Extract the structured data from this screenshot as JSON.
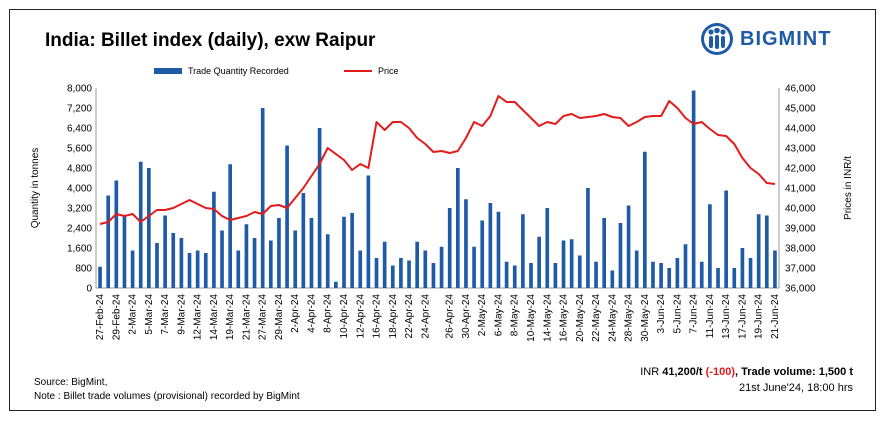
{
  "title": "India: Billet index (daily), exw Raipur",
  "brand": {
    "name": "BIGMINT",
    "color": "#1f5aa6",
    "icon": "people-group-icon"
  },
  "legend": {
    "bar_label": "Trade Quantity Recorded",
    "line_label": "Price"
  },
  "colors": {
    "bar": "#1f5aa6",
    "line": "#e31b1b"
  },
  "footer": {
    "source": "Source: BigMint,",
    "note": "Note : Billet trade volumes (provisional) recorded by BigMint",
    "price_prefix": "INR ",
    "price_value": "41,200/t",
    "change": "(-100)",
    "trade_volume": ", Trade volume: 1,500 t",
    "timestamp": "21st June'24, 18:00 hrs"
  },
  "chart_data": {
    "type": "bar",
    "title": "India: Billet index (daily), exw Raipur",
    "ylabel": "Quantity in tonnes",
    "y2label": "Prices in INR/t",
    "ylim": [
      0,
      8000
    ],
    "y2lim": [
      36000,
      46000
    ],
    "yticks": [
      "0",
      "800",
      "1,600",
      "2,400",
      "3,200",
      "4,000",
      "4,800",
      "5,600",
      "6,400",
      "7,200",
      "8,000"
    ],
    "y2ticks": [
      "36,000",
      "37,000",
      "38,000",
      "39,000",
      "40,000",
      "41,000",
      "42,000",
      "43,000",
      "44,000",
      "45,000",
      "46,000"
    ],
    "xtick_labels": [
      "27-Feb-24",
      "29-Feb-24",
      "2-Mar-24",
      "5-Mar-24",
      "7-Mar-24",
      "9-Mar-24",
      "12-Mar-24",
      "14-Mar-24",
      "19-Mar-24",
      "21-Mar-24",
      "27-Mar-24",
      "29-Mar-24",
      "2-Apr-24",
      "4-Apr-24",
      "8-Apr-24",
      "10-Apr-24",
      "12-Apr-24",
      "16-Apr-24",
      "18-Apr-24",
      "22-Apr-24",
      "24-Apr-24",
      "26-Apr-24",
      "30-Apr-24",
      "2-May-24",
      "6-May-24",
      "8-May-24",
      "10-May-24",
      "14-May-24",
      "16-May-24",
      "20-May-24",
      "22-May-24",
      "24-May-24",
      "28-May-24",
      "30-May-24",
      "3-Jun-24",
      "5-Jun-24",
      "7-Jun-24",
      "11-Jun-24",
      "13-Jun-24",
      "17-Jun-24",
      "19-Jun-24",
      "21-Jun-24"
    ],
    "series": [
      {
        "name": "Trade Quantity Recorded",
        "type": "bar",
        "values": [
          850,
          3700,
          4300,
          2900,
          1500,
          5050,
          4800,
          1800,
          2900,
          2200,
          2000,
          1400,
          1500,
          1400,
          3850,
          2300,
          4950,
          1500,
          2550,
          2000,
          7200,
          1900,
          2800,
          5700,
          2300,
          3800,
          2800,
          6400,
          2150,
          250,
          2850,
          3000,
          1500,
          4500,
          1200,
          1850,
          900,
          1200,
          1100,
          1850,
          1500,
          1000,
          1650,
          3200,
          4800,
          3550,
          1650,
          2700,
          3400,
          3050,
          1050,
          900,
          2950,
          1000,
          2050,
          3200,
          1000,
          1900,
          1950,
          1300,
          4000,
          1050,
          2800,
          700,
          2600,
          3300,
          1500,
          5450,
          1050,
          1000,
          800,
          1200,
          1750,
          7900,
          1050,
          3350,
          800,
          3900,
          800,
          1600,
          1200,
          2950,
          2900,
          1500
        ]
      },
      {
        "name": "Price",
        "type": "line",
        "values": [
          39200,
          39300,
          39700,
          39600,
          39700,
          39300,
          39600,
          39900,
          39900,
          40000,
          40200,
          40400,
          40200,
          40000,
          39950,
          39600,
          39400,
          39500,
          39600,
          39800,
          39700,
          40100,
          40150,
          40000,
          40500,
          41000,
          41600,
          42200,
          43000,
          42700,
          42400,
          41900,
          42200,
          42000,
          44300,
          43900,
          44300,
          44300,
          44000,
          43500,
          43200,
          42800,
          42850,
          42750,
          42850,
          43500,
          44300,
          44100,
          44600,
          45600,
          45300,
          45300,
          44900,
          44500,
          44100,
          44300,
          44200,
          44600,
          44700,
          44500,
          44550,
          44600,
          44700,
          44550,
          44500,
          44100,
          44300,
          44550,
          44600,
          44600,
          45350,
          45000,
          44500,
          44200,
          44300,
          43950,
          43650,
          43600,
          43200,
          42500,
          42000,
          41700,
          41250,
          41200
        ]
      }
    ]
  }
}
